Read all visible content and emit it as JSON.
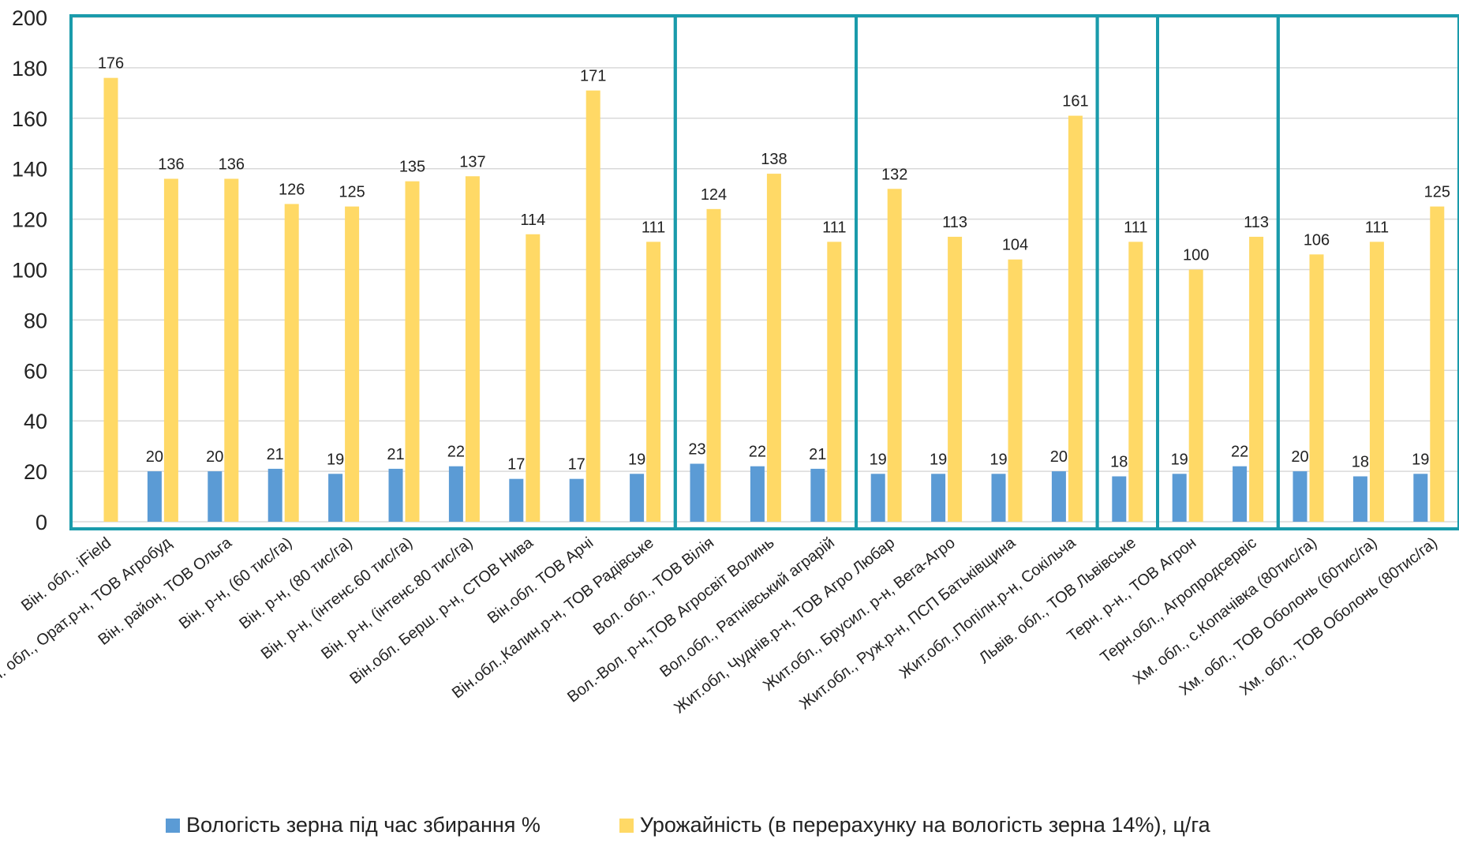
{
  "chart_data": {
    "type": "bar",
    "ylim": [
      0,
      200
    ],
    "yticks": [
      0,
      20,
      40,
      60,
      80,
      100,
      120,
      140,
      160,
      180,
      200
    ],
    "grid": true,
    "legend_position": "bottom",
    "categories": [
      "Він. обл., iField",
      "Він. обл., Орат.р-н, ТОВ Агробуд",
      "Він. район, ТОВ Ольга",
      "Він. р-н, (60 тис/га)",
      "Він. р-н, (80 тис/га)",
      "Він. р-н, (інтенс.60 тис/га)",
      "Він. р-н, (інтенс.80 тис/га)",
      "Він.обл. Берш. р-н, СТОВ Нива",
      "Він.обл. ТОВ Арчі",
      "Він.обл.,Калин.р-н, ТОВ Радівське",
      "Вол. обл., ТОВ Вілія",
      "Вол.-Вол. р-н,ТОВ Агросвіт Волинь",
      "Вол.обл., Ратнівський аграрій",
      "Жит.обл, Чуднів.р-н, ТОВ Агро Любар",
      "Жит.обл., Брусил. р-н, Вега-Агро",
      "Жит.обл., Руж.р-н, ПСП Батьківщина",
      "Жит.обл.,Попілн.р-н, Сокільча",
      "Львів. обл., ТОВ Львівське",
      "Терн. р-н., ТОВ Агрон",
      "Терн.обл., Агропродсервіс",
      "Хм. обл., с.Копачівка (80тис/га)",
      "Хм. обл., ТОВ Оболонь (60тис/га)",
      "Хм. обл., ТОВ Оболонь (80тис/га)"
    ],
    "series": [
      {
        "name": "Вологість зерна під час збирання %",
        "color": "#5b9bd5",
        "values": [
          null,
          20,
          20,
          21,
          19,
          21,
          22,
          17,
          17,
          19,
          23,
          22,
          21,
          19,
          19,
          19,
          20,
          18,
          19,
          22,
          20,
          18,
          19
        ],
        "labels": [
          "",
          "20",
          "20",
          "21",
          "19",
          "21",
          "22",
          "17",
          "17",
          "19",
          "23",
          "22",
          "21",
          "19",
          "19",
          "19",
          "20",
          "18",
          "19",
          "22",
          "20",
          "18",
          "19"
        ]
      },
      {
        "name": "Урожайність  (в перерахунку на вологість зерна 14%), ц/га",
        "color": "#ffd966",
        "values": [
          176,
          136,
          136,
          126,
          125,
          135,
          137,
          114,
          171,
          111,
          124,
          138,
          111,
          132,
          113,
          104,
          161,
          111,
          100,
          113,
          106,
          111,
          125
        ],
        "labels": [
          "176",
          "136",
          "136",
          "126",
          "125",
          "135",
          "137",
          "114",
          "171",
          "111",
          "124",
          "138",
          "111",
          "132",
          "113",
          "104",
          "161",
          "111",
          "100",
          "113",
          "106",
          "111",
          "125"
        ]
      }
    ],
    "region_groups": [
      [
        0,
        9
      ],
      [
        10,
        12
      ],
      [
        13,
        16
      ],
      [
        17,
        17
      ],
      [
        18,
        19
      ],
      [
        20,
        22
      ]
    ],
    "region_box_color": "#1a9bab"
  }
}
